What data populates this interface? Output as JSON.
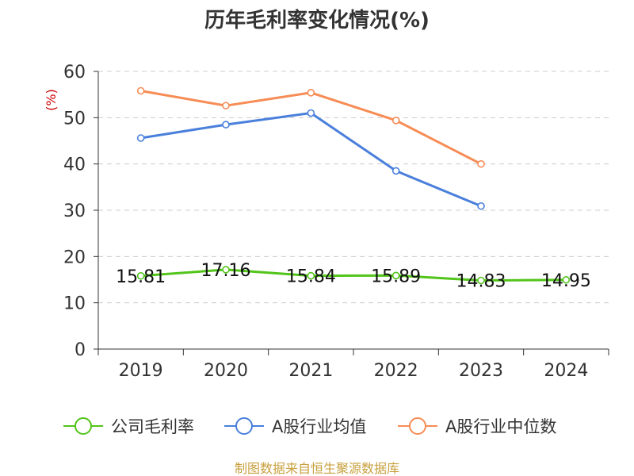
{
  "chart_data": {
    "type": "line",
    "title": "历年毛利率变化情况(%)",
    "unit_label": "(%)",
    "categories": [
      "2019",
      "2020",
      "2021",
      "2022",
      "2023",
      "2024"
    ],
    "ylim": [
      0,
      60
    ],
    "y_ticks": [
      0,
      10,
      20,
      30,
      40,
      50,
      60
    ],
    "grid": true,
    "legend_position": "bottom",
    "series": [
      {
        "name": "公司毛利率",
        "color": "#52c41a",
        "values": [
          15.81,
          17.16,
          15.84,
          15.89,
          14.83,
          14.95
        ],
        "labels": [
          "15.81",
          "17.16",
          "15.84",
          "15.89",
          "14.83",
          "14.95"
        ]
      },
      {
        "name": "A股行业均值",
        "color": "#4a7fdb",
        "values": [
          45.6,
          48.5,
          51.0,
          38.5,
          30.9,
          null
        ]
      },
      {
        "name": "A股行业中位数",
        "color": "#f78c55",
        "values": [
          55.8,
          52.6,
          55.4,
          49.4,
          40.0,
          null
        ]
      }
    ]
  },
  "source_text": "制图数据来自恒生聚源数据库",
  "colors": {
    "unit_label": "#cc0000",
    "source_text": "#c8a03c",
    "axis": "#333333",
    "grid": "#cccccc"
  }
}
